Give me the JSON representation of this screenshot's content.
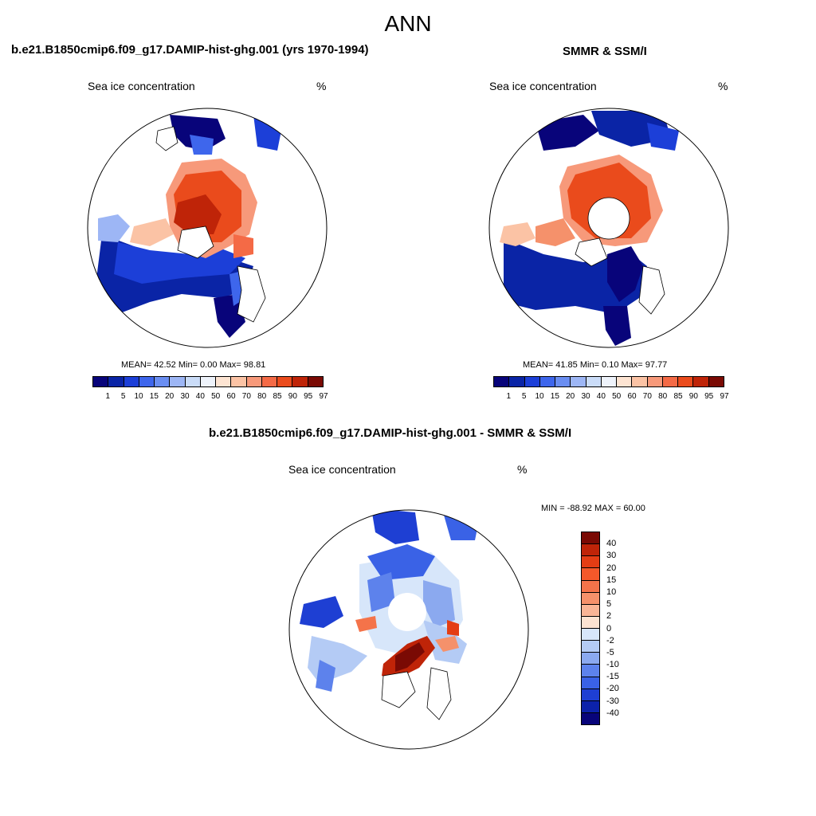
{
  "title": "ANN",
  "panels": {
    "model": {
      "title": "b.e21.B1850cmip6.f09_g17.DAMIP-hist-ghg.001 (yrs 1970-1994)",
      "variable": "Sea ice concentration",
      "unit": "%",
      "stats": "MEAN=  42.52  Min=   0.00  Max=  98.81"
    },
    "obs": {
      "title": "SMMR & SSM/I",
      "variable": "Sea ice concentration",
      "unit": "%",
      "stats": "MEAN=  41.85  Min=   0.10  Max=  97.77"
    },
    "diff": {
      "title": "b.e21.B1850cmip6.f09_g17.DAMIP-hist-ghg.001 - SMMR & SSM/I",
      "variable": "Sea ice concentration",
      "unit": "%",
      "minmax": "MIN = -88.92 MAX =  60.00"
    }
  },
  "colorbar_abs": {
    "labels": [
      "1",
      "5",
      "10",
      "15",
      "20",
      "30",
      "40",
      "50",
      "60",
      "70",
      "80",
      "85",
      "90",
      "95",
      "97"
    ],
    "colors": [
      "#08047a",
      "#0a24a6",
      "#1c3fd8",
      "#3e66ec",
      "#6a8ef2",
      "#9db6f5",
      "#cadcf8",
      "#eef3fb",
      "#fde4d2",
      "#fbc3a5",
      "#f7997a",
      "#f46a46",
      "#ea4b1c",
      "#bf2408",
      "#7a0a04"
    ]
  },
  "colorbar_diff": {
    "labels": [
      "40",
      "30",
      "20",
      "15",
      "10",
      "5",
      "2",
      "0",
      "-2",
      "-5",
      "-10",
      "-15",
      "-20",
      "-30",
      "-40"
    ],
    "colors": [
      "#7a0a04",
      "#bf2408",
      "#e43d14",
      "#f4582a",
      "#f4734a",
      "#f5916b",
      "#f9b596",
      "#fde4d2",
      "#d7e6fa",
      "#b4cbf5",
      "#8ba9ef",
      "#5d82ec",
      "#3a62e6",
      "#1e3fd3",
      "#0c22aa",
      "#08047a"
    ]
  }
}
